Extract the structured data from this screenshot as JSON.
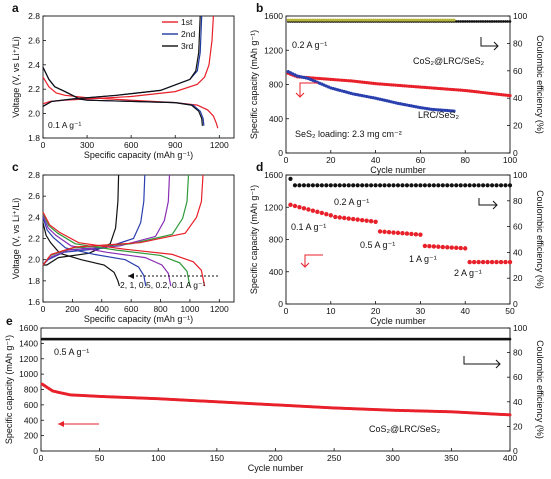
{
  "chart_data": [
    {
      "panel": "a",
      "type": "line",
      "xlabel": "Specific capacity (mAh g⁻¹)",
      "ylabel": "Voltage (V, vs Li⁺/Li)",
      "xlim": [
        0,
        1300
      ],
      "ylim": [
        1.8,
        2.8
      ],
      "xticks": [
        0,
        300,
        600,
        900,
        1200
      ],
      "yticks": [
        1.8,
        2.0,
        2.2,
        2.4,
        2.6,
        2.8
      ],
      "annotations": [
        "0.1 A g⁻¹"
      ],
      "legend_position": "top-right",
      "series": [
        {
          "name": "1st",
          "color": "#e8202a",
          "discharge": [
            [
              0,
              2.3
            ],
            [
              40,
              2.22
            ],
            [
              90,
              2.17
            ],
            [
              150,
              2.15
            ],
            [
              300,
              2.13
            ],
            [
              600,
              2.11
            ],
            [
              900,
              2.09
            ],
            [
              1050,
              2.07
            ],
            [
              1120,
              2.03
            ],
            [
              1160,
              1.98
            ],
            [
              1180,
              1.92
            ],
            [
              1190,
              1.88
            ]
          ],
          "charge": [
            [
              0,
              2.08
            ],
            [
              50,
              2.1
            ],
            [
              150,
              2.11
            ],
            [
              300,
              2.12
            ],
            [
              600,
              2.14
            ],
            [
              900,
              2.18
            ],
            [
              1050,
              2.24
            ],
            [
              1100,
              2.3
            ],
            [
              1130,
              2.4
            ],
            [
              1150,
              2.6
            ],
            [
              1160,
              2.8
            ]
          ]
        },
        {
          "name": "2nd",
          "color": "#1f3aa0",
          "discharge": [
            [
              0,
              2.38
            ],
            [
              40,
              2.28
            ],
            [
              80,
              2.22
            ],
            [
              150,
              2.18
            ],
            [
              250,
              2.12
            ],
            [
              300,
              2.11
            ],
            [
              600,
              2.1
            ],
            [
              900,
              2.09
            ],
            [
              1020,
              2.07
            ],
            [
              1070,
              2.02
            ],
            [
              1090,
              1.96
            ],
            [
              1095,
              1.9
            ]
          ],
          "charge": [
            [
              0,
              2.06
            ],
            [
              60,
              2.1
            ],
            [
              200,
              2.12
            ],
            [
              500,
              2.15
            ],
            [
              800,
              2.19
            ],
            [
              1000,
              2.28
            ],
            [
              1050,
              2.35
            ],
            [
              1070,
              2.5
            ],
            [
              1080,
              2.8
            ]
          ]
        },
        {
          "name": "3rd",
          "color": "#111111",
          "discharge": [
            [
              0,
              2.38
            ],
            [
              40,
              2.28
            ],
            [
              80,
              2.22
            ],
            [
              150,
              2.18
            ],
            [
              250,
              2.12
            ],
            [
              300,
              2.11
            ],
            [
              600,
              2.1
            ],
            [
              900,
              2.09
            ],
            [
              1010,
              2.07
            ],
            [
              1060,
              2.02
            ],
            [
              1080,
              1.96
            ],
            [
              1085,
              1.9
            ]
          ],
          "charge": [
            [
              0,
              2.06
            ],
            [
              60,
              2.1
            ],
            [
              200,
              2.12
            ],
            [
              500,
              2.15
            ],
            [
              800,
              2.19
            ],
            [
              1000,
              2.28
            ],
            [
              1040,
              2.35
            ],
            [
              1060,
              2.5
            ],
            [
              1070,
              2.8
            ]
          ]
        }
      ]
    },
    {
      "panel": "b",
      "type": "scatter",
      "xlabel": "Cycle number",
      "ylabel": "Specific capacity (mAh g⁻¹)",
      "ylabel2": "Coulombic efficiency (%)",
      "xlim": [
        0,
        100
      ],
      "ylim": [
        0,
        1600
      ],
      "ylim2": [
        0,
        100
      ],
      "xticks": [
        0,
        20,
        40,
        60,
        80,
        100
      ],
      "yticks": [
        0,
        400,
        800,
        1200,
        1600
      ],
      "yticks2": [
        0,
        20,
        40,
        60,
        80,
        100
      ],
      "annotations": [
        "0.2 A g⁻¹",
        "CoS₂@LRC/SeS₂",
        "LRC/SeS₂",
        "SeS₂ loading: 2.3 mg cm⁻²"
      ],
      "series": [
        {
          "name": "CoS₂@LRC/SeS₂",
          "color": "#e8202a",
          "axis": "left",
          "points": [
            [
              1,
              930
            ],
            [
              5,
              890
            ],
            [
              10,
              880
            ],
            [
              20,
              860
            ],
            [
              30,
              840
            ],
            [
              40,
              810
            ],
            [
              50,
              790
            ],
            [
              60,
              770
            ],
            [
              70,
              750
            ],
            [
              80,
              730
            ],
            [
              90,
              700
            ],
            [
              100,
              670
            ]
          ]
        },
        {
          "name": "LRC/SeS₂",
          "color": "#2a3fae",
          "axis": "left",
          "points": [
            [
              1,
              950
            ],
            [
              5,
              900
            ],
            [
              10,
              870
            ],
            [
              20,
              760
            ],
            [
              30,
              690
            ],
            [
              40,
              640
            ],
            [
              50,
              580
            ],
            [
              55,
              555
            ],
            [
              60,
              530
            ],
            [
              65,
              510
            ],
            [
              70,
              500
            ],
            [
              75,
              490
            ]
          ]
        },
        {
          "name": "CE CoS₂@LRC/SeS₂",
          "color": "#111111",
          "axis": "right",
          "value": 96,
          "x_range": [
            1,
            100
          ]
        },
        {
          "name": "CE LRC/SeS₂",
          "color": "#b5b53a",
          "axis": "right",
          "value": 97,
          "x_range": [
            1,
            75
          ]
        }
      ]
    },
    {
      "panel": "c",
      "type": "line",
      "xlabel": "Specific capacity (mAh g⁻¹)",
      "ylabel": "Voltage (V, vs Li⁺/Li)",
      "xlim": [
        0,
        1300
      ],
      "ylim": [
        1.6,
        2.8
      ],
      "xticks": [
        0,
        200,
        400,
        600,
        800,
        1000,
        1200
      ],
      "yticks": [
        1.6,
        1.8,
        2.0,
        2.2,
        2.4,
        2.6,
        2.8
      ],
      "annotations": [
        "2, 1, 0.5, 0.2, 0.1 A g⁻¹"
      ],
      "series": [
        {
          "rate": "2 A g⁻¹",
          "color": "#111111",
          "capacity": 520,
          "plateau": 2.0
        },
        {
          "rate": "1 A g⁻¹",
          "color": "#2a3fae",
          "capacity": 700,
          "plateau": 2.05
        },
        {
          "rate": "0.5 A g⁻¹",
          "color": "#8a2fb5",
          "capacity": 870,
          "plateau": 2.07
        },
        {
          "rate": "0.2 A g⁻¹",
          "color": "#2e9a3a",
          "capacity": 1000,
          "plateau": 2.09
        },
        {
          "rate": "0.1 A g⁻¹",
          "color": "#e8202a",
          "capacity": 1100,
          "plateau": 2.1
        }
      ]
    },
    {
      "panel": "d",
      "type": "scatter",
      "xlabel": "Cycle number",
      "ylabel": "Specific capacity (mAh g⁻¹)",
      "ylabel2": "Coulombic efficiency (%)",
      "xlim": [
        0,
        50
      ],
      "ylim": [
        0,
        1600
      ],
      "ylim2": [
        0,
        100
      ],
      "xticks": [
        0,
        10,
        20,
        30,
        40,
        50
      ],
      "yticks": [
        0,
        400,
        800,
        1200,
        1600
      ],
      "yticks2": [
        0,
        20,
        40,
        60,
        80,
        100
      ],
      "annotations": [
        "0.1 A g⁻¹",
        "0.2 A g⁻¹",
        "0.5 A g⁻¹",
        "1 A g⁻¹",
        "2 A g⁻¹"
      ],
      "series": [
        {
          "name": "capacity",
          "color": "#e8202a",
          "axis": "left",
          "segments": [
            {
              "rate": "0.1 A g⁻¹",
              "x": [
                1,
                10
              ],
              "values": [
                1230,
                1100
              ]
            },
            {
              "rate": "0.2 A g⁻¹",
              "x": [
                11,
                20
              ],
              "values": [
                1080,
                1020
              ]
            },
            {
              "rate": "0.5 A g⁻¹",
              "x": [
                21,
                30
              ],
              "values": [
                900,
                860
              ]
            },
            {
              "rate": "1 A g⁻¹",
              "x": [
                31,
                40
              ],
              "values": [
                720,
                690
              ]
            },
            {
              "rate": "2 A g⁻¹",
              "x": [
                41,
                50
              ],
              "values": [
                520,
                520
              ]
            }
          ]
        },
        {
          "name": "coulombic efficiency",
          "color": "#111111",
          "axis": "right",
          "first": 97,
          "value": 92,
          "x_range": [
            1,
            50
          ]
        }
      ]
    },
    {
      "panel": "e",
      "type": "scatter",
      "xlabel": "Cycle number",
      "ylabel": "Specific capacity (mAh g⁻¹)",
      "ylabel2": "Coulombic efficiency (%)",
      "xlim": [
        0,
        400
      ],
      "ylim": [
        0,
        1600
      ],
      "ylim2": [
        0,
        100
      ],
      "xticks": [
        0,
        50,
        100,
        150,
        200,
        250,
        300,
        350,
        400
      ],
      "yticks": [
        0,
        200,
        400,
        600,
        800,
        1000,
        1200,
        1400,
        1600
      ],
      "yticks2": [
        0,
        20,
        40,
        60,
        80,
        100
      ],
      "annotations": [
        "0.5 A g⁻¹",
        "CoS₂@LRC/SeS₂"
      ],
      "series": [
        {
          "name": "CoS₂@LRC/SeS₂",
          "color": "#e8202a",
          "axis": "left",
          "points": [
            [
              1,
              870
            ],
            [
              10,
              780
            ],
            [
              25,
              730
            ],
            [
              50,
              710
            ],
            [
              100,
              680
            ],
            [
              150,
              640
            ],
            [
              200,
              600
            ],
            [
              250,
              560
            ],
            [
              300,
              530
            ],
            [
              350,
              510
            ],
            [
              400,
              470
            ]
          ]
        },
        {
          "name": "coulombic efficiency",
          "color": "#111111",
          "axis": "right",
          "value": 91,
          "x_range": [
            1,
            400
          ]
        }
      ]
    }
  ]
}
